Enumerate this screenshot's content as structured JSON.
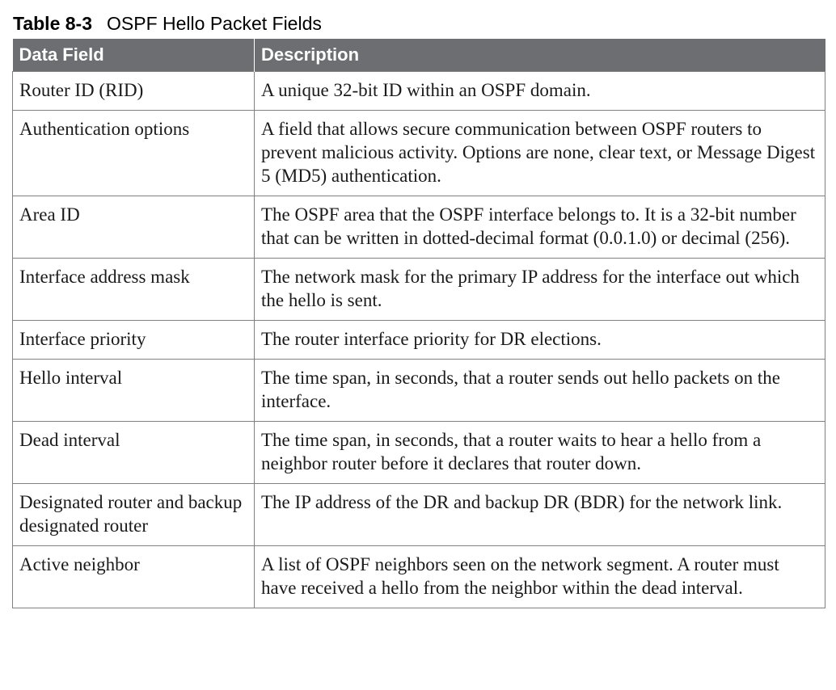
{
  "caption": {
    "number": "Table 8-3",
    "title": "OSPF Hello Packet Fields"
  },
  "table": {
    "headers": [
      "Data Field",
      "Description"
    ],
    "rows": [
      {
        "field": "Router ID (RID)",
        "description": "A unique 32-bit ID within an OSPF domain."
      },
      {
        "field": "Authentication options",
        "description": "A field that allows secure communication between OSPF routers to prevent malicious activity. Options are none, clear text, or Message Digest 5 (MD5) authentication."
      },
      {
        "field": "Area ID",
        "description": "The OSPF area that the OSPF interface belongs to. It is a 32-bit number that can be written in dotted-decimal format (0.0.1.0) or decimal (256)."
      },
      {
        "field": "Interface address mask",
        "description": "The network mask for the primary IP address for the interface out which the hello is sent."
      },
      {
        "field": "Interface priority",
        "description": "The router interface priority for DR elections."
      },
      {
        "field": "Hello interval",
        "description": "The time span, in seconds, that a router sends out hello packets on the interface."
      },
      {
        "field": "Dead interval",
        "description": "The time span, in seconds, that a router waits to hear a hello from a neighbor router before it declares that router down."
      },
      {
        "field": "Designated router and backup designated router",
        "description": "The IP address of the DR and backup DR (BDR) for the network link."
      },
      {
        "field": "Active neighbor",
        "description": "A list of OSPF neighbors seen on the network segment. A router must have received a hello from the neighbor within the dead interval."
      }
    ]
  }
}
